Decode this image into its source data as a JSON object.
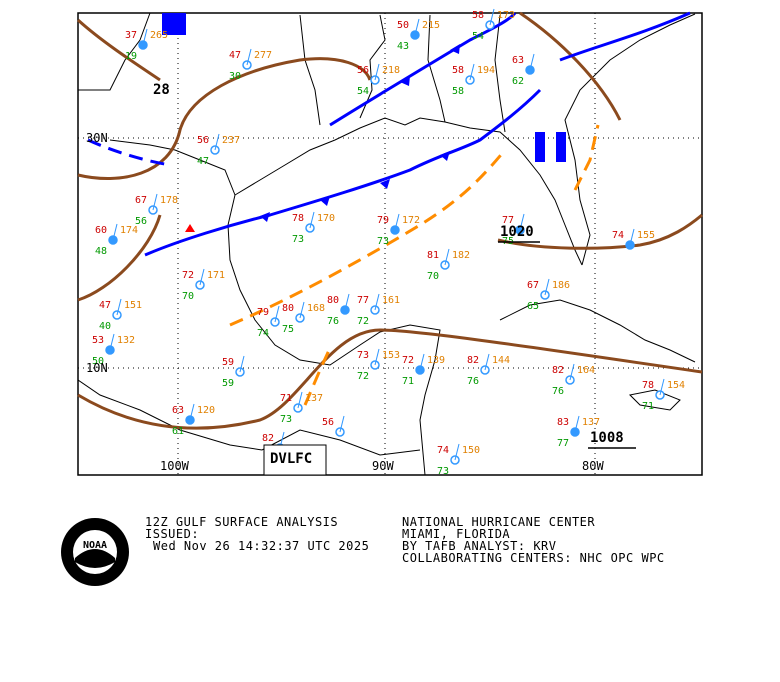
{
  "map": {
    "lat_labels": [
      "30N",
      "10N"
    ],
    "lon_labels": [
      "100W",
      "90W",
      "80W"
    ],
    "pressure_labels": [
      "28",
      "1020",
      "1008"
    ],
    "feature_label": "DVLFC",
    "stations": [
      {
        "temp": "37",
        "dew": "19",
        "pres": "265"
      },
      {
        "temp": "47",
        "dew": "30",
        "pres": "277"
      },
      {
        "temp": "56",
        "dew": "54",
        "pres": "218"
      },
      {
        "temp": "50",
        "dew": "43",
        "pres": "215"
      },
      {
        "temp": "58",
        "dew": "58",
        "pres": "194"
      },
      {
        "temp": "58",
        "dew": "54",
        "pres": "173"
      },
      {
        "temp": "63",
        "dew": "62"
      },
      {
        "temp": "56",
        "dew": "47",
        "pres": "237"
      },
      {
        "temp": "67",
        "dew": "56",
        "pres": "178"
      },
      {
        "temp": "60",
        "dew": "48",
        "pres": "174"
      },
      {
        "temp": "72",
        "dew": "70",
        "pres": "171"
      },
      {
        "temp": "47",
        "dew": "40",
        "pres": "151"
      },
      {
        "temp": "53",
        "dew": "50",
        "pres": "132"
      },
      {
        "temp": "79",
        "dew": "74"
      },
      {
        "temp": "80",
        "dew": "75",
        "pres": "168"
      },
      {
        "temp": "80",
        "dew": "76"
      },
      {
        "temp": "77",
        "dew": "72",
        "pres": "161"
      },
      {
        "temp": "78",
        "dew": "73",
        "pres": "170"
      },
      {
        "temp": "79",
        "dew": "73",
        "pres": "172"
      },
      {
        "temp": "81",
        "dew": "70",
        "pres": "182"
      },
      {
        "temp": "67",
        "dew": "65",
        "pres": "186"
      },
      {
        "temp": "77",
        "dew": "75"
      },
      {
        "temp": "82",
        "dew": "76",
        "pres": "144"
      },
      {
        "temp": "82",
        "dew": "76",
        "pres": "164"
      },
      {
        "temp": "83",
        "dew": "77",
        "pres": "137"
      },
      {
        "temp": "78",
        "dew": "71",
        "pres": "154"
      },
      {
        "temp": "74",
        "dew": "73",
        "pres": "150"
      },
      {
        "temp": "72",
        "dew": "71",
        "pres": "139"
      },
      {
        "temp": "73",
        "dew": "72",
        "pres": "153"
      },
      {
        "temp": "71",
        "dew": "73",
        "pres": "137"
      },
      {
        "temp": "63",
        "dew": "61",
        "pres": "120"
      },
      {
        "temp": "82"
      },
      {
        "temp": "56"
      },
      {
        "temp": "74",
        "pres": "155"
      },
      {
        "temp": "59",
        "dew": "59"
      }
    ]
  },
  "logo": "NOAA",
  "footer": {
    "product": "12Z GULF SURFACE ANALYSIS",
    "issued_label": "ISSUED:",
    "issued_time": "Wed Nov 26 14:32:37 UTC 2025",
    "center": "NATIONAL HURRICANE CENTER",
    "location": "MIAMI, FLORIDA",
    "analyst": "BY TAFB ANALYST: KRV",
    "collaborating": "COLLABORATING CENTERS: NHC OPC WPC"
  }
}
